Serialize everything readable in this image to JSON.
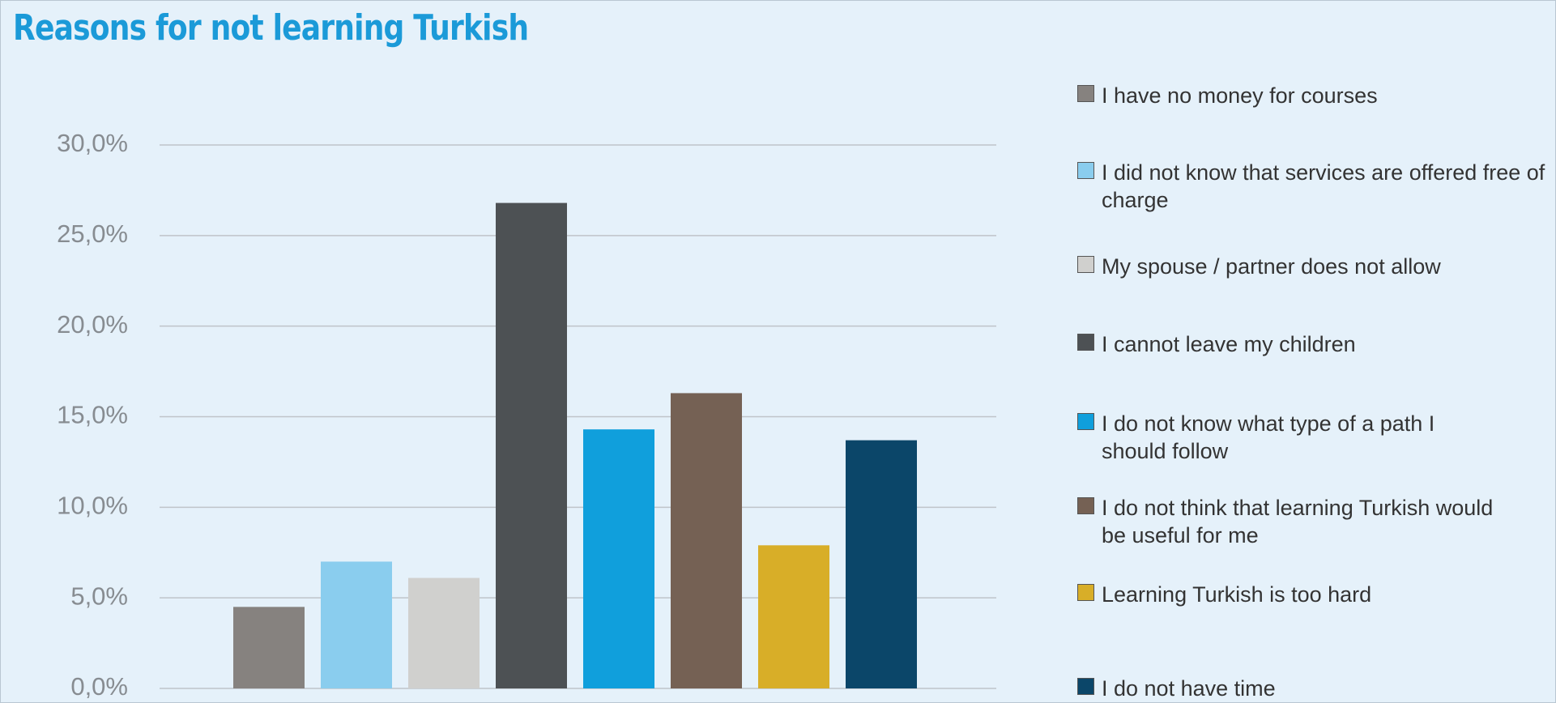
{
  "chart_data": {
    "type": "bar",
    "title": "Reasons for not learning Turkish",
    "categories": [
      null
    ],
    "series": [
      {
        "name": "I have no money for courses",
        "color": "#86827f",
        "values": [
          4.5
        ]
      },
      {
        "name": "I did not know that services are offered free of charge",
        "color": "#8acdee",
        "values": [
          7.0
        ]
      },
      {
        "name": "My spouse / partner does not allow",
        "color": "#d0d0ce",
        "values": [
          6.1
        ]
      },
      {
        "name": "I cannot leave my children",
        "color": "#4d5154",
        "values": [
          26.8
        ]
      },
      {
        "name": "I do not know what type of a path I should follow",
        "color": "#109fdc",
        "values": [
          14.3
        ]
      },
      {
        "name": "I do not think that learning Turkish would be useful for me",
        "color": "#756154",
        "values": [
          16.3
        ]
      },
      {
        "name": "Learning Turkish is too hard",
        "color": "#d8ae28",
        "values": [
          7.9
        ]
      },
      {
        "name": "I do not have time",
        "color": "#0b4669",
        "values": [
          13.7
        ]
      }
    ],
    "ylim": [
      0,
      30
    ],
    "yticks": [
      {
        "value": 0,
        "label": "0,0%"
      },
      {
        "value": 5,
        "label": "5,0%"
      },
      {
        "value": 10,
        "label": "10,0%"
      },
      {
        "value": 15,
        "label": "15,0%"
      },
      {
        "value": 20,
        "label": "20,0%"
      },
      {
        "value": 25,
        "label": "25,0%"
      },
      {
        "value": 30,
        "label": "30,0%"
      }
    ],
    "grid": true,
    "legend": "right"
  }
}
